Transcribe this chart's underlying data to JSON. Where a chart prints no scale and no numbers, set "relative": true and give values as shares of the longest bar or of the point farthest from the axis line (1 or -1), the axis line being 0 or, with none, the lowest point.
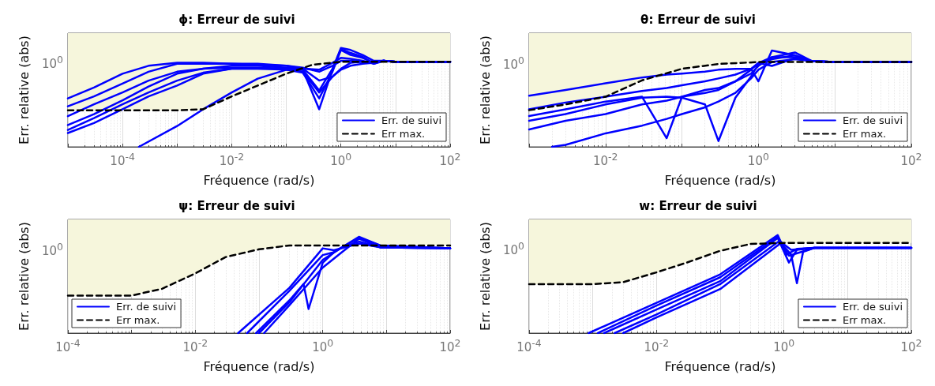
{
  "chart_data": [
    {
      "type": "line",
      "title": "ϕ: Erreur de suivi",
      "xlabel": "Fréquence (rad/s)",
      "ylabel": "Err. relative (abs)",
      "log": "x",
      "relative": true,
      "xlim": [
        1e-05,
        100
      ],
      "xticks": [
        {
          "value": 1e-05,
          "label": null
        },
        {
          "value": 0.0001,
          "label": "10$^{-4}$"
        },
        {
          "value": 0.001,
          "label": null
        },
        {
          "value": 0.01,
          "label": "10$^{-2}$"
        },
        {
          "value": 0.1,
          "label": null
        },
        {
          "value": 1,
          "label": "10$^{0}$"
        },
        {
          "value": 10,
          "label": null
        },
        {
          "value": 100,
          "label": "10$^{2}$"
        }
      ],
      "annotations": [
        "10$^{0}$"
      ],
      "grid": "x",
      "legend": "bottom right",
      "marker": "none",
      "x": [
        1e-05,
        3e-05,
        0.0001,
        0.0003,
        0.001,
        0.003,
        0.01,
        0.03,
        0.1,
        0.2,
        0.4,
        0.7,
        1,
        1.5,
        2.5,
        4,
        6,
        10,
        100
      ],
      "series": [
        {
          "name": "Err. de suivi",
          "color": "#0000ff",
          "line_style": "solid",
          "values": [
            0.41,
            0.51,
            0.64,
            0.76,
            0.84,
            0.84,
            0.84,
            0.83,
            0.82,
            0.79,
            0.78,
            0.85,
            0.9,
            0.89,
            0.87,
            0.84,
            0.87,
            0.86,
            0.86
          ]
        },
        {
          "color": "#0000ff",
          "line_style": "solid",
          "values": [
            0.31,
            0.43,
            0.55,
            0.67,
            0.76,
            0.79,
            0.8,
            0.8,
            0.79,
            0.78,
            0.38,
            0.78,
            1,
            0.98,
            0.93,
            0.87,
            0.87,
            0.86,
            0.86
          ]
        },
        {
          "color": "#0000ff",
          "line_style": "solid",
          "values": [
            0.14,
            0.24,
            0.38,
            0.51,
            0.62,
            0.74,
            0.79,
            0.79,
            0.79,
            0.78,
            0.57,
            0.79,
            0.99,
            0.95,
            0.91,
            0.84,
            0.87,
            0.86,
            0.86
          ]
        },
        {
          "color": "#0000ff",
          "line_style": "solid",
          "values": [
            0.17,
            0.29,
            0.43,
            0.55,
            0.67,
            0.75,
            0.79,
            0.79,
            0.78,
            0.75,
            0.49,
            0.76,
            0.98,
            0.93,
            0.9,
            0.85,
            0.87,
            0.86,
            0.86
          ]
        },
        {
          "color": "#0000ff",
          "line_style": "solid",
          "x": [
            0.0002,
            0.001,
            0.003,
            0.01,
            0.03,
            0.1,
            0.2,
            0.4,
            0.7,
            1,
            1.5,
            2.5,
            4,
            6,
            10,
            100
          ],
          "values": [
            0,
            0.21,
            0.38,
            0.55,
            0.69,
            0.78,
            0.76,
            0.55,
            0.71,
            0.79,
            0.85,
            0.86,
            0.85,
            0.87,
            0.86,
            0.86
          ]
        },
        {
          "color": "#0000ff",
          "line_style": "solid",
          "values": [
            0.22,
            0.33,
            0.47,
            0.61,
            0.74,
            0.79,
            0.82,
            0.82,
            0.8,
            0.79,
            0.67,
            0.71,
            0.78,
            0.82,
            0.84,
            0.85,
            0.87,
            0.86,
            0.86
          ]
        },
        {
          "color": "#0000ff",
          "line_style": "solid",
          "values": [
            0.49,
            0.6,
            0.74,
            0.82,
            0.85,
            0.85,
            0.84,
            0.84,
            0.82,
            0.8,
            0.76,
            0.82,
            0.87,
            0.87,
            0.86,
            0.85,
            0.87,
            0.86,
            0.86
          ]
        },
        {
          "name": "Err max.",
          "color": "#000000",
          "line_style": "dashed",
          "x": [
            1e-05,
            0.0001,
            0.001,
            0.003,
            0.01,
            0.03,
            0.1,
            0.3,
            1,
            10,
            100
          ],
          "values": [
            0.37,
            0.37,
            0.37,
            0.38,
            0.51,
            0.62,
            0.74,
            0.83,
            0.86,
            0.86,
            0.86
          ],
          "lower": [
            0.37,
            0.37,
            0.37,
            0.38,
            0.51,
            0.62,
            0.74,
            0.83,
            0.86,
            0.86,
            0.86
          ],
          "upper": [
            1.15,
            1.15,
            1.15,
            1.15,
            1.15,
            1.15,
            1.15,
            1.15,
            1.15,
            1.15,
            1.15
          ]
        }
      ]
    },
    {
      "type": "line",
      "title": "θ: Erreur de suivi",
      "xlabel": "Fréquence (rad/s)",
      "ylabel": "Err. relative (abs)",
      "log": "x",
      "relative": true,
      "xlim": [
        0.001,
        100
      ],
      "xticks": [
        {
          "value": 0.001,
          "label": null
        },
        {
          "value": 0.01,
          "label": "10$^{-2}$"
        },
        {
          "value": 0.1,
          "label": null
        },
        {
          "value": 1,
          "label": "10$^{0}$"
        },
        {
          "value": 10,
          "label": null
        },
        {
          "value": 100,
          "label": "10$^{2}$"
        }
      ],
      "annotations": [
        "10$^{0}$"
      ],
      "grid": "x",
      "legend": "bottom right",
      "marker": "none",
      "x": [
        0.001,
        0.003,
        0.01,
        0.03,
        0.063,
        0.1,
        0.2,
        0.3,
        0.5,
        0.8,
        1,
        1.5,
        3,
        5,
        10,
        100
      ],
      "series": [
        {
          "name": "Err. de suivi",
          "color": "#0000ff",
          "line_style": "solid",
          "values": [
            0.53,
            0.59,
            0.66,
            0.72,
            0.75,
            0.76,
            0.78,
            0.8,
            0.81,
            0.81,
            0.68,
            1,
            0.95,
            0.89,
            0.88,
            0.88
          ]
        },
        {
          "color": "#0000ff",
          "line_style": "solid",
          "values": [
            0.32,
            0.39,
            0.47,
            0.52,
            0.09,
            0.52,
            0.59,
            0.61,
            0.68,
            0.76,
            0.84,
            0.93,
            0.98,
            0.89,
            0.88,
            0.88
          ]
        },
        {
          "color": "#0000ff",
          "line_style": "solid",
          "values": [
            0.27,
            0.34,
            0.44,
            0.51,
            0.52,
            0.51,
            0.44,
            0.06,
            0.51,
            0.73,
            0.86,
            0.91,
            0.95,
            0.89,
            0.88,
            0.88
          ]
        },
        {
          "color": "#0000ff",
          "line_style": "solid",
          "values": [
            0.18,
            0.27,
            0.34,
            0.44,
            0.48,
            0.52,
            0.56,
            0.59,
            0.68,
            0.8,
            0.87,
            0.93,
            0.93,
            0.89,
            0.88,
            0.88
          ]
        },
        {
          "color": "#0000ff",
          "line_style": "solid",
          "values": [
            0.39,
            0.46,
            0.52,
            0.58,
            0.61,
            0.64,
            0.68,
            0.71,
            0.75,
            0.81,
            0.87,
            0.84,
            0.92,
            0.89,
            0.88,
            0.88
          ]
        },
        {
          "color": "#0000ff",
          "line_style": "solid",
          "x": [
            0.002,
            0.003,
            0.01,
            0.03,
            0.063,
            0.1,
            0.2,
            0.3,
            0.5,
            0.8,
            1,
            1.5,
            3,
            5,
            10,
            100
          ],
          "values": [
            0,
            0.02,
            0.14,
            0.22,
            0.29,
            0.34,
            0.41,
            0.47,
            0.56,
            0.71,
            0.8,
            0.88,
            0.91,
            0.89,
            0.88,
            0.88
          ]
        },
        {
          "name": "Err max.",
          "color": "#000000",
          "line_style": "dashed",
          "x": [
            0.001,
            0.003,
            0.01,
            0.03,
            0.1,
            0.3,
            1,
            10,
            100
          ],
          "values": [
            0.38,
            0.44,
            0.52,
            0.69,
            0.81,
            0.86,
            0.88,
            0.88,
            0.88
          ],
          "lower": [
            0.38,
            0.44,
            0.52,
            0.69,
            0.81,
            0.86,
            0.88,
            0.88,
            0.88
          ],
          "upper": [
            1.18,
            1.18,
            1.18,
            1.18,
            1.18,
            1.18,
            1.18,
            1.18,
            1.18
          ]
        }
      ]
    },
    {
      "type": "line",
      "title": "ψ: Erreur de suivi",
      "xlabel": "Fréquence (rad/s)",
      "ylabel": "Err. relative (abs)",
      "log": "x",
      "relative": true,
      "xlim": [
        0.0001,
        100
      ],
      "xticks": [
        {
          "value": 0.0001,
          "label": "10$^{-4}$"
        },
        {
          "value": 0.001,
          "label": null
        },
        {
          "value": 0.01,
          "label": "10$^{-2}$"
        },
        {
          "value": 0.1,
          "label": null
        },
        {
          "value": 1,
          "label": "10$^{0}$"
        },
        {
          "value": 10,
          "label": null
        },
        {
          "value": 100,
          "label": "10$^{2}$"
        }
      ],
      "annotations": [
        "10$^{0}$"
      ],
      "grid": "x",
      "legend": "bottom left",
      "marker": "none",
      "series": [
        {
          "name": "Err. de suivi",
          "color": "#0000ff",
          "line_style": "solid",
          "x": [
            0.047,
            0.3,
            1,
            1.5,
            3.7,
            8,
            100
          ],
          "values": [
            0,
            0.47,
            0.88,
            0.86,
            0.93,
            0.89,
            0.88
          ]
        },
        {
          "color": "#0000ff",
          "line_style": "solid",
          "x": [
            0.065,
            0.3,
            1,
            1.5,
            3.7,
            8,
            100
          ],
          "values": [
            0,
            0.44,
            0.81,
            0.84,
            1,
            0.91,
            0.88
          ]
        },
        {
          "color": "#0000ff",
          "line_style": "solid",
          "x": [
            0.09,
            0.3,
            0.5,
            0.6,
            1,
            1.5,
            3.7,
            8,
            100
          ],
          "values": [
            0,
            0.34,
            0.51,
            0.25,
            0.73,
            0.84,
            0.99,
            0.91,
            0.88
          ]
        },
        {
          "color": "#0000ff",
          "line_style": "solid",
          "x": [
            0.12,
            0.3,
            1,
            2,
            3.7,
            8,
            100
          ],
          "values": [
            0,
            0.29,
            0.68,
            0.84,
            0.98,
            0.89,
            0.88
          ]
        },
        {
          "color": "#0000ff",
          "line_style": "solid",
          "x": [
            0.1,
            0.3,
            1,
            2,
            3.7,
            8,
            100
          ],
          "values": [
            0,
            0.32,
            0.76,
            0.89,
            0.95,
            0.89,
            0.88
          ]
        },
        {
          "name": "Err max.",
          "color": "#000000",
          "line_style": "dashed",
          "x": [
            0.0001,
            0.001,
            0.003,
            0.01,
            0.03,
            0.1,
            0.3,
            1,
            100
          ],
          "values": [
            0.39,
            0.39,
            0.46,
            0.62,
            0.79,
            0.87,
            0.91,
            0.91,
            0.91
          ],
          "lower": [
            0.39,
            0.39,
            0.46,
            0.62,
            0.79,
            0.87,
            0.91,
            0.91,
            0.91
          ],
          "upper": [
            1.18,
            1.18,
            1.18,
            1.18,
            1.18,
            1.18,
            1.18,
            1.18,
            1.18
          ]
        }
      ]
    },
    {
      "type": "line",
      "title": "w: Erreur de suivi",
      "xlabel": "Fréquence (rad/s)",
      "ylabel": "Err. relative (abs)",
      "log": "x",
      "relative": true,
      "xlim": [
        0.0001,
        100
      ],
      "xticks": [
        {
          "value": 0.0001,
          "label": "10$^{-4}$"
        },
        {
          "value": 0.001,
          "label": null
        },
        {
          "value": 0.01,
          "label": "10$^{-2}$"
        },
        {
          "value": 0.1,
          "label": null
        },
        {
          "value": 1,
          "label": "10$^{0}$"
        },
        {
          "value": 10,
          "label": null
        },
        {
          "value": 100,
          "label": "10$^{2}$"
        }
      ],
      "annotations": [
        "10$^{0}$"
      ],
      "grid": "x",
      "legend": "bottom right",
      "marker": "none",
      "series": [
        {
          "name": "Err. de suivi",
          "color": "#0000ff",
          "line_style": "solid",
          "x": [
            0.00086,
            0.01,
            0.1,
            0.8,
            1.1,
            1.6,
            3,
            100
          ],
          "values": [
            0,
            0.31,
            0.6,
            1,
            0.8,
            0.86,
            0.87,
            0.87
          ]
        },
        {
          "color": "#0000ff",
          "line_style": "solid",
          "x": [
            0.0012,
            0.01,
            0.1,
            0.8,
            1.2,
            3,
            100
          ],
          "values": [
            0,
            0.28,
            0.57,
            0.98,
            0.79,
            0.87,
            0.87
          ]
        },
        {
          "color": "#0000ff",
          "line_style": "solid",
          "x": [
            0.0015,
            0.01,
            0.1,
            0.8,
            1.2,
            1.6,
            3,
            100
          ],
          "values": [
            0,
            0.24,
            0.53,
            0.97,
            0.72,
            0.85,
            0.87,
            0.87
          ]
        },
        {
          "color": "#0000ff",
          "line_style": "solid",
          "x": [
            0.0022,
            0.01,
            0.1,
            0.85,
            1.3,
            3,
            100
          ],
          "values": [
            0,
            0.19,
            0.5,
            0.94,
            0.85,
            0.87,
            0.87
          ]
        },
        {
          "color": "#0000ff",
          "line_style": "solid",
          "x": [
            0.003,
            0.01,
            0.1,
            0.9,
            1.3,
            1.6,
            2,
            3,
            100
          ],
          "values": [
            0,
            0.16,
            0.45,
            0.92,
            0.8,
            0.51,
            0.83,
            0.87,
            0.87
          ]
        },
        {
          "name": "Err max.",
          "color": "#000000",
          "line_style": "dashed",
          "x": [
            0.0001,
            0.001,
            0.003,
            0.01,
            0.03,
            0.1,
            0.3,
            1,
            100
          ],
          "values": [
            0.5,
            0.5,
            0.52,
            0.62,
            0.72,
            0.84,
            0.91,
            0.92,
            0.92
          ],
          "lower": [
            0.5,
            0.5,
            0.52,
            0.62,
            0.72,
            0.84,
            0.91,
            0.92,
            0.92
          ],
          "upper": [
            1.16,
            1.16,
            1.16,
            1.16,
            1.16,
            1.16,
            1.16,
            1.16,
            1.16
          ]
        }
      ]
    }
  ]
}
